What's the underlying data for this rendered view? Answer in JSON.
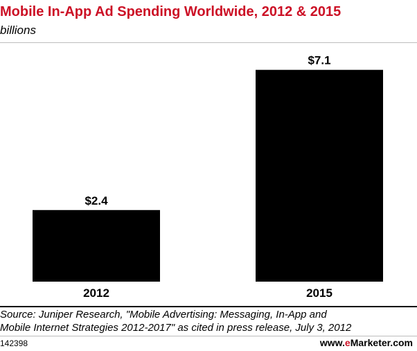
{
  "chart_data": {
    "type": "bar",
    "title": "Mobile In-App Ad Spending Worldwide, 2012 & 2015",
    "subtitle": "billions",
    "categories": [
      "2012",
      "2015"
    ],
    "values": [
      2.4,
      7.1
    ],
    "value_labels": [
      "$2.4",
      "$7.1"
    ],
    "ylim": [
      0,
      8
    ],
    "grid": false,
    "bar_color": "#000000"
  },
  "source": {
    "line1": "Source: Juniper Research, \"Mobile Advertising: Messaging, In-App and",
    "line2": "Mobile Internet Strategies 2012-2017\" as cited in press release, July 3, 2012"
  },
  "footer": {
    "chart_id": "142398",
    "brand_www": "www.",
    "brand_e": "e",
    "brand_rest": "Marketer.com"
  },
  "colors": {
    "title": "#cc1126",
    "brand_accent": "#cc1126"
  }
}
